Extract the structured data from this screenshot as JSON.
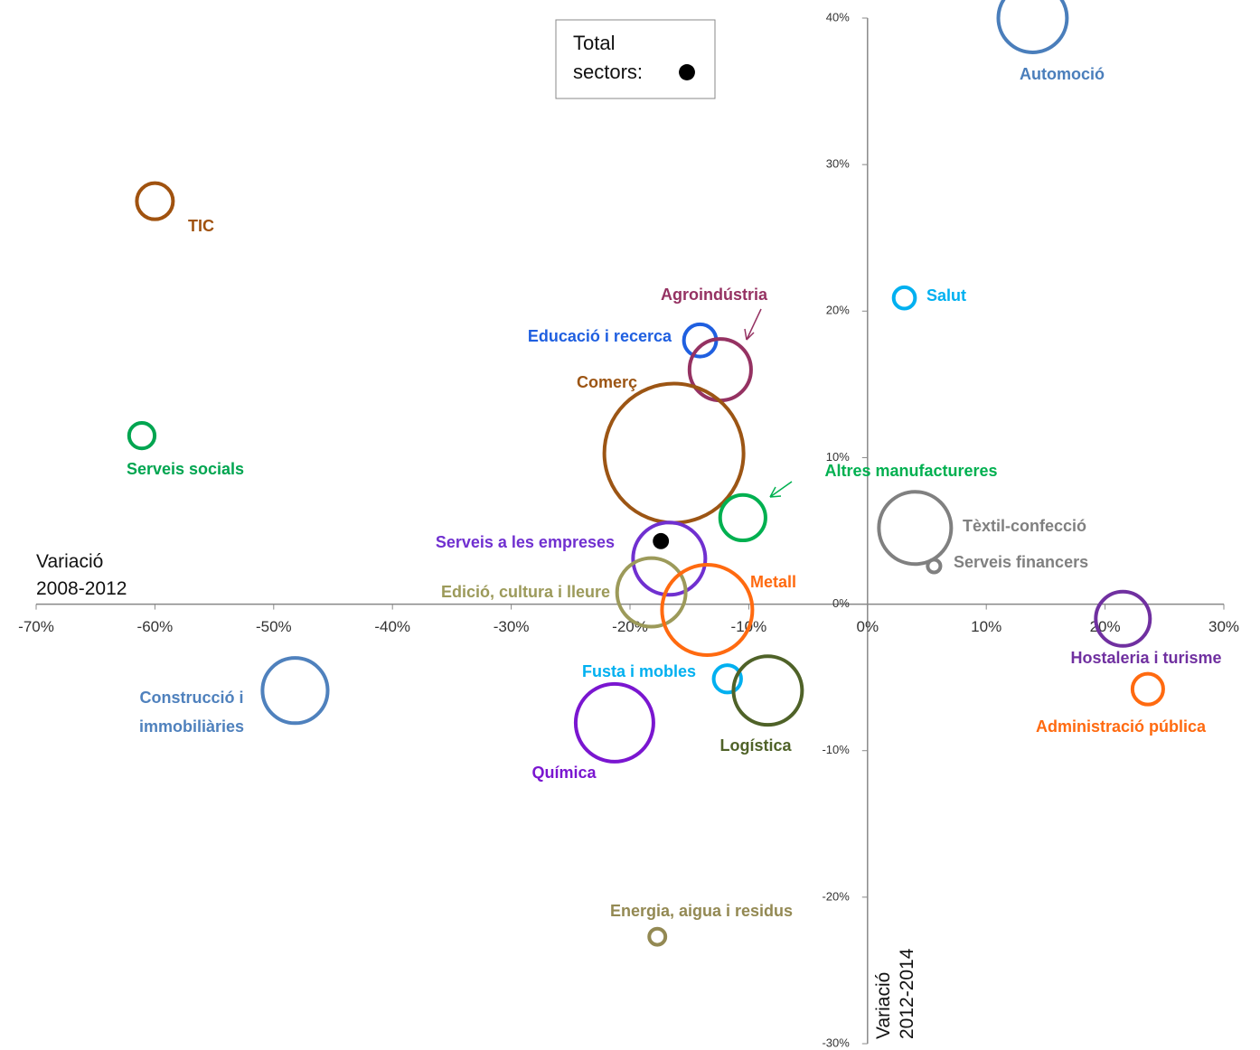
{
  "chart_data": {
    "type": "bubble",
    "x_label": [
      "Variació",
      "2008-2012"
    ],
    "y_label": [
      "Variació",
      "2012-2014"
    ],
    "xlim": [
      -70,
      30
    ],
    "ylim": [
      -30,
      40
    ],
    "xticks": [
      {
        "value": -70,
        "label": "-70%"
      },
      {
        "value": -60,
        "label": "-60%"
      },
      {
        "value": -50,
        "label": "-50%"
      },
      {
        "value": -40,
        "label": "-40%"
      },
      {
        "value": -30,
        "label": "-30%"
      },
      {
        "value": -20,
        "label": "-20%"
      },
      {
        "value": -10,
        "label": "-10%"
      },
      {
        "value": 0,
        "label": "0%"
      },
      {
        "value": 10,
        "label": "10%"
      },
      {
        "value": 20,
        "label": "20%"
      },
      {
        "value": 30,
        "label": "30%"
      }
    ],
    "yticks": [
      {
        "value": -30,
        "label": "-30%"
      },
      {
        "value": -20,
        "label": "-20%"
      },
      {
        "value": -10,
        "label": "-10%"
      },
      {
        "value": 0,
        "label": "0%"
      },
      {
        "value": 10,
        "label": "10%"
      },
      {
        "value": 20,
        "label": "20%"
      },
      {
        "value": 30,
        "label": "30%"
      },
      {
        "value": 40,
        "label": "40%"
      }
    ],
    "points": [
      {
        "name": "Automoció",
        "color": "#4a7ebb",
        "x": 13.9,
        "y": 40,
        "size": 14.4
      },
      {
        "name": "TIC",
        "color": "#a0520f",
        "x": -60,
        "y": 27.5,
        "size": 4
      },
      {
        "name": "Salut",
        "color": "#00b0f0",
        "x": 3.1,
        "y": 20.9,
        "size": 1.4
      },
      {
        "name": "Educació  i recerca",
        "color": "#1f5fe0",
        "x": -14.1,
        "y": 18,
        "size": 3.2
      },
      {
        "name": "Agroindústria",
        "color": "#953262",
        "x": -12.4,
        "y": 16,
        "size": 11.6
      },
      {
        "name": "Comerç",
        "color": "#9c5514",
        "x": -16.3,
        "y": 10.3,
        "size": 59.3
      },
      {
        "name": "Serveis socials",
        "color": "#00a550",
        "x": -61.1,
        "y": 11.5,
        "size": 2
      },
      {
        "name": "Altres manufactureres",
        "color": "#00b050",
        "x": -10.5,
        "y": 5.9,
        "size": 6.3
      },
      {
        "name": "Tèxtil-confecció",
        "color": "#808080",
        "x": 4,
        "y": 5.2,
        "size": 16
      },
      {
        "name": "Serveis financers",
        "color": "#808080",
        "x": 5.6,
        "y": 2.6,
        "size": 0.5
      },
      {
        "name": "Serveis a les empreses",
        "color": "#7030d0",
        "x": -16.7,
        "y": 3.1,
        "size": 16
      },
      {
        "name": "Edició, cultura  i lleure",
        "color": "#9c9a5a",
        "x": -18.2,
        "y": 0.8,
        "size": 14.4
      },
      {
        "name": "Metall",
        "color": "#ff6a10",
        "x": -13.5,
        "y": -0.4,
        "size": 25
      },
      {
        "name": "Hostaleria  i turisme",
        "color": "#7030a0",
        "x": 21.5,
        "y": -1,
        "size": 9
      },
      {
        "name": "Construcció i immobiliàries",
        "color": "#4f81bd",
        "x": -48.2,
        "y": -5.9,
        "size": 13
      },
      {
        "name": "Fusta i mobles",
        "color": "#00b0f0",
        "x": -11.8,
        "y": -5.1,
        "size": 2.3
      },
      {
        "name": "Logística",
        "color": "#4f6228",
        "x": -8.4,
        "y": -5.9,
        "size": 14.4
      },
      {
        "name": "Administració pública",
        "color": "#ff6a10",
        "x": 23.6,
        "y": -5.8,
        "size": 2.9
      },
      {
        "name": "Química",
        "color": "#7a16d0",
        "x": -21.3,
        "y": -8.1,
        "size": 18.5
      },
      {
        "name": "Energia, aigua  i residus",
        "color": "#938953",
        "x": -17.7,
        "y": -22.7,
        "size": 0.8
      },
      {
        "name": "Total sectors:",
        "color": "#000000",
        "x": -17.4,
        "y": 4.3,
        "size": 0.8,
        "filled": true,
        "legend": true
      }
    ]
  }
}
